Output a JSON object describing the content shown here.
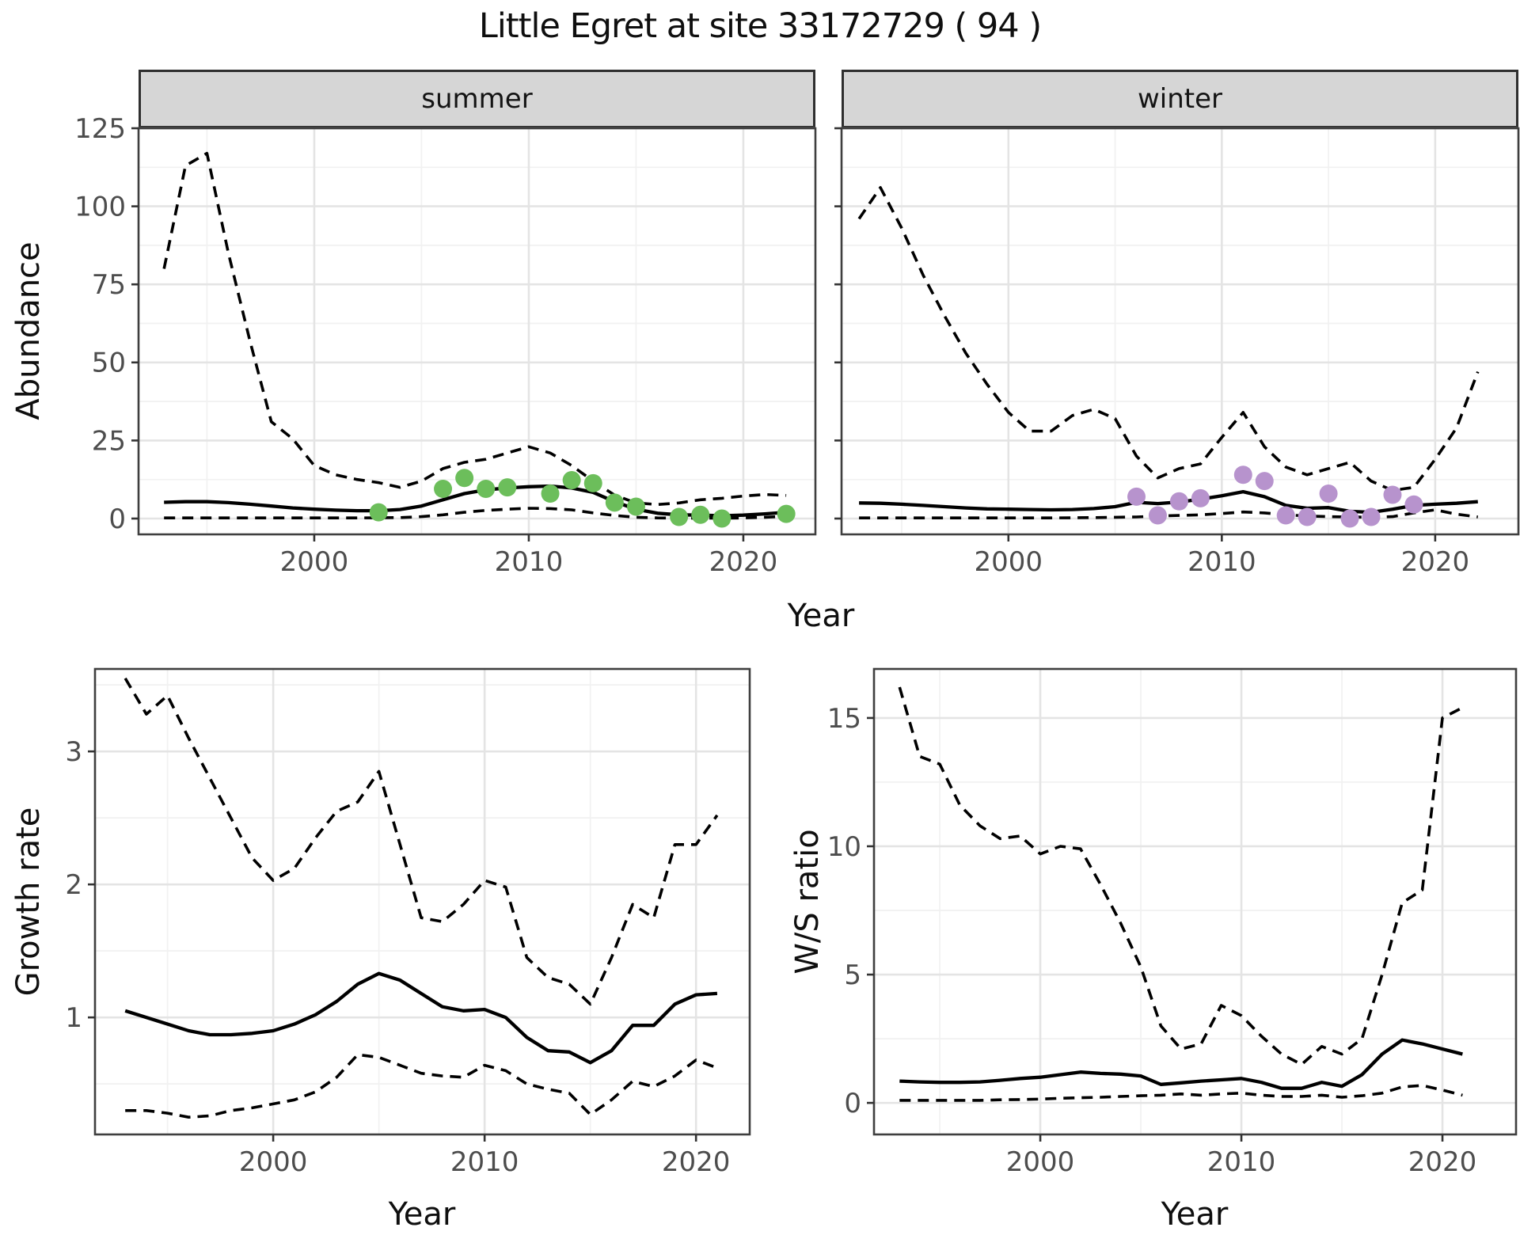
{
  "title": "Little Egret at site 33172729 ( 94 )",
  "facets": {
    "summer": "summer",
    "winter": "winter"
  },
  "axis_titles": {
    "abundance": "Abundance",
    "year_top": "Year",
    "growth": "Growth rate",
    "year_bottom_left": "Year",
    "ws": "W/S ratio",
    "year_bottom_right": "Year"
  },
  "colors": {
    "summer_point": "#6cbe5b",
    "winter_point": "#b793cd",
    "line": "#000000",
    "strip_fill": "#d6d6d6",
    "strip_border": "#2f2f2f",
    "panel_border": "#3f3f3f",
    "grid_major": "#e4e4e4",
    "grid_minor": "#f1f1f1",
    "tick_text": "#4d4d4d",
    "tick_mark": "#333333",
    "panel_bg": "#ffffff"
  },
  "chart_data": [
    {
      "id": "abundance-summer",
      "type": "line",
      "facet_label": "summer",
      "ylabel": "Abundance",
      "xlabel": "Year",
      "x_domain": [
        1991.81,
        2023.36
      ],
      "y_domain": [
        -5.07,
        125
      ],
      "x_ticks": [
        2000,
        2010,
        2020
      ],
      "x_minor": [
        1995,
        2005,
        2015
      ],
      "y_ticks": [
        0,
        25,
        50,
        75,
        100,
        125
      ],
      "y_minor": [
        12.5,
        37.5,
        62.5,
        87.5,
        112.5
      ],
      "show_y_tick_labels": true,
      "years": [
        1993,
        1994,
        1995,
        1996,
        1997,
        1998,
        1999,
        2000,
        2001,
        2002,
        2003,
        2004,
        2005,
        2006,
        2007,
        2008,
        2009,
        2010,
        2011,
        2012,
        2013,
        2014,
        2015,
        2016,
        2017,
        2018,
        2019,
        2020,
        2021,
        2022
      ],
      "series": [
        {
          "name": "upper_ci",
          "style": "dashed",
          "values": [
            80,
            113,
            117,
            85,
            57,
            31,
            25.5,
            17,
            14,
            12.5,
            11.5,
            10,
            12,
            16,
            18,
            19,
            21,
            23,
            21,
            17,
            12,
            7.5,
            5,
            4.5,
            5,
            6,
            6.5,
            7.2,
            7.7,
            7.4
          ]
        },
        {
          "name": "mean",
          "style": "solid",
          "values": [
            5.2,
            5.4,
            5.4,
            5.1,
            4.6,
            4.0,
            3.4,
            3.0,
            2.7,
            2.5,
            2.5,
            2.9,
            4.0,
            6.0,
            8.0,
            9.2,
            9.8,
            10.2,
            10.4,
            9.8,
            8.4,
            5.4,
            3.0,
            1.7,
            1.2,
            1.1,
            0.9,
            1.1,
            1.5,
            2.0
          ]
        },
        {
          "name": "lower_ci",
          "style": "dashed",
          "values": [
            0.2,
            0.2,
            0.2,
            0.2,
            0.2,
            0.2,
            0.2,
            0.2,
            0.2,
            0.2,
            0.25,
            0.3,
            0.6,
            1.2,
            2.0,
            2.6,
            3.0,
            3.3,
            3.2,
            2.8,
            1.8,
            1.0,
            0.4,
            0.2,
            0.15,
            0.15,
            0.1,
            0.2,
            0.4,
            0.7
          ]
        }
      ],
      "points": [
        [
          2003,
          2
        ],
        [
          2006,
          9.5
        ],
        [
          2007,
          13
        ],
        [
          2008,
          9.5
        ],
        [
          2009,
          10
        ],
        [
          2011,
          8
        ],
        [
          2012,
          12.3
        ],
        [
          2013,
          11.3
        ],
        [
          2014,
          5.1
        ],
        [
          2015,
          3.8
        ],
        [
          2017,
          0.5
        ],
        [
          2018,
          1.2
        ],
        [
          2019,
          0
        ],
        [
          2022,
          1.5
        ]
      ],
      "point_color": "#6cbe5b"
    },
    {
      "id": "abundance-winter",
      "type": "line",
      "facet_label": "winter",
      "ylabel": "Abundance",
      "xlabel": "Year",
      "x_domain": [
        1992.18,
        2023.9
      ],
      "y_domain": [
        -5.07,
        125
      ],
      "x_ticks": [
        2000,
        2010,
        2020
      ],
      "x_minor": [
        1995,
        2005,
        2015
      ],
      "y_ticks": [
        0,
        25,
        50,
        75,
        100,
        125
      ],
      "y_minor": [
        12.5,
        37.5,
        62.5,
        87.5,
        112.5
      ],
      "show_y_tick_labels": false,
      "years": [
        1993,
        1994,
        1995,
        1996,
        1997,
        1998,
        1999,
        2000,
        2001,
        2002,
        2003,
        2004,
        2005,
        2006,
        2007,
        2008,
        2009,
        2010,
        2011,
        2012,
        2013,
        2014,
        2015,
        2016,
        2017,
        2018,
        2019,
        2020,
        2021,
        2022
      ],
      "series": [
        {
          "name": "upper_ci",
          "style": "dashed",
          "values": [
            96,
            106,
            93,
            78,
            65,
            53,
            43,
            34,
            28,
            28,
            33,
            35,
            32,
            20,
            13,
            16,
            17.5,
            26,
            34,
            23,
            16.5,
            14,
            16,
            18,
            12,
            9,
            10,
            19,
            29,
            47
          ]
        },
        {
          "name": "mean",
          "style": "solid",
          "values": [
            5.0,
            4.9,
            4.6,
            4.2,
            3.8,
            3.4,
            3.1,
            3.0,
            2.9,
            2.8,
            2.9,
            3.2,
            3.8,
            5.2,
            4.8,
            5.3,
            6.2,
            7.3,
            8.6,
            7.0,
            4.2,
            3.3,
            3.5,
            2.3,
            2.0,
            3.0,
            4.2,
            4.6,
            4.9,
            5.4
          ]
        },
        {
          "name": "lower_ci",
          "style": "dashed",
          "values": [
            0.2,
            0.2,
            0.2,
            0.2,
            0.2,
            0.2,
            0.2,
            0.2,
            0.2,
            0.2,
            0.25,
            0.3,
            0.4,
            0.5,
            0.8,
            1.0,
            1.2,
            1.6,
            2.1,
            1.8,
            1.2,
            0.8,
            0.6,
            0.5,
            0.4,
            0.6,
            1.8,
            2.8,
            1.4,
            0.5
          ]
        }
      ],
      "points": [
        [
          2006,
          7
        ],
        [
          2007,
          1
        ],
        [
          2008,
          5.5
        ],
        [
          2009,
          6.5
        ],
        [
          2011,
          14
        ],
        [
          2012,
          12
        ],
        [
          2013,
          1
        ],
        [
          2014,
          0.5
        ],
        [
          2015,
          8
        ],
        [
          2016,
          0
        ],
        [
          2017,
          0.5
        ],
        [
          2018,
          7.6
        ],
        [
          2019,
          4.5
        ]
      ],
      "point_color": "#b793cd"
    },
    {
      "id": "growth-rate",
      "type": "line",
      "facet_label": null,
      "ylabel": "Growth rate",
      "xlabel": "Year",
      "x_domain": [
        1991.57,
        2022.54
      ],
      "y_domain": [
        0.12,
        3.62
      ],
      "x_ticks": [
        2000,
        2010,
        2020
      ],
      "x_minor": [
        1995,
        2005,
        2015
      ],
      "y_ticks": [
        1,
        2,
        3
      ],
      "y_minor": [
        0.5,
        1.5,
        2.5,
        3.5
      ],
      "show_y_tick_labels": true,
      "years": [
        1993,
        1994,
        1995,
        1996,
        1997,
        1998,
        1999,
        2000,
        2001,
        2002,
        2003,
        2004,
        2005,
        2006,
        2007,
        2008,
        2009,
        2010,
        2011,
        2012,
        2013,
        2014,
        2015,
        2016,
        2017,
        2018,
        2019,
        2020,
        2021
      ],
      "series": [
        {
          "name": "upper_ci",
          "style": "dashed",
          "values": [
            3.55,
            3.28,
            3.42,
            3.1,
            2.8,
            2.5,
            2.2,
            2.03,
            2.12,
            2.35,
            2.55,
            2.62,
            2.85,
            2.3,
            1.75,
            1.72,
            1.85,
            2.03,
            1.98,
            1.45,
            1.3,
            1.25,
            1.1,
            1.45,
            1.85,
            1.75,
            2.3,
            2.3,
            2.52
          ]
        },
        {
          "name": "mean",
          "style": "solid",
          "values": [
            1.05,
            1.0,
            0.95,
            0.9,
            0.87,
            0.87,
            0.88,
            0.9,
            0.95,
            1.02,
            1.12,
            1.25,
            1.33,
            1.28,
            1.18,
            1.08,
            1.05,
            1.06,
            1.0,
            0.85,
            0.75,
            0.74,
            0.66,
            0.75,
            0.94,
            0.94,
            1.1,
            1.17,
            1.18
          ]
        },
        {
          "name": "lower_ci",
          "style": "dashed",
          "values": [
            0.3,
            0.3,
            0.28,
            0.25,
            0.26,
            0.3,
            0.32,
            0.35,
            0.38,
            0.44,
            0.55,
            0.72,
            0.7,
            0.64,
            0.58,
            0.56,
            0.55,
            0.64,
            0.6,
            0.5,
            0.46,
            0.43,
            0.27,
            0.38,
            0.52,
            0.48,
            0.56,
            0.68,
            0.62
          ]
        }
      ],
      "points": [],
      "point_color": null
    },
    {
      "id": "ws-ratio",
      "type": "line",
      "facet_label": null,
      "ylabel": "W/S ratio",
      "xlabel": "Year",
      "x_domain": [
        1991.73,
        2023.66
      ],
      "y_domain": [
        -1.23,
        16.91
      ],
      "x_ticks": [
        2000,
        2010,
        2020
      ],
      "x_minor": [
        1995,
        2005,
        2015
      ],
      "y_ticks": [
        0,
        5,
        10,
        15
      ],
      "y_minor": [
        2.5,
        7.5,
        12.5
      ],
      "show_y_tick_labels": true,
      "years": [
        1993,
        1994,
        1995,
        1996,
        1997,
        1998,
        1999,
        2000,
        2001,
        2002,
        2003,
        2004,
        2005,
        2006,
        2007,
        2008,
        2009,
        2010,
        2011,
        2012,
        2013,
        2014,
        2015,
        2016,
        2017,
        2018,
        2019,
        2020,
        2021
      ],
      "series": [
        {
          "name": "upper_ci",
          "style": "dashed",
          "values": [
            16.2,
            13.5,
            13.2,
            11.6,
            10.8,
            10.3,
            10.4,
            9.7,
            10.0,
            9.9,
            8.5,
            7.0,
            5.3,
            3.0,
            2.1,
            2.3,
            3.8,
            3.4,
            2.6,
            1.9,
            1.5,
            2.2,
            1.9,
            2.5,
            5.0,
            7.8,
            8.3,
            15.0,
            15.4
          ]
        },
        {
          "name": "mean",
          "style": "solid",
          "values": [
            0.85,
            0.82,
            0.8,
            0.8,
            0.82,
            0.88,
            0.95,
            1.0,
            1.1,
            1.2,
            1.15,
            1.12,
            1.05,
            0.72,
            0.78,
            0.85,
            0.9,
            0.95,
            0.8,
            0.57,
            0.57,
            0.8,
            0.65,
            1.1,
            1.9,
            2.45,
            2.3,
            2.1,
            1.9
          ]
        },
        {
          "name": "lower_ci",
          "style": "dashed",
          "values": [
            0.1,
            0.1,
            0.1,
            0.1,
            0.1,
            0.12,
            0.13,
            0.15,
            0.18,
            0.2,
            0.22,
            0.25,
            0.28,
            0.3,
            0.35,
            0.3,
            0.35,
            0.38,
            0.3,
            0.25,
            0.25,
            0.3,
            0.22,
            0.28,
            0.38,
            0.62,
            0.68,
            0.5,
            0.3
          ]
        }
      ],
      "points": [],
      "point_color": null
    }
  ]
}
